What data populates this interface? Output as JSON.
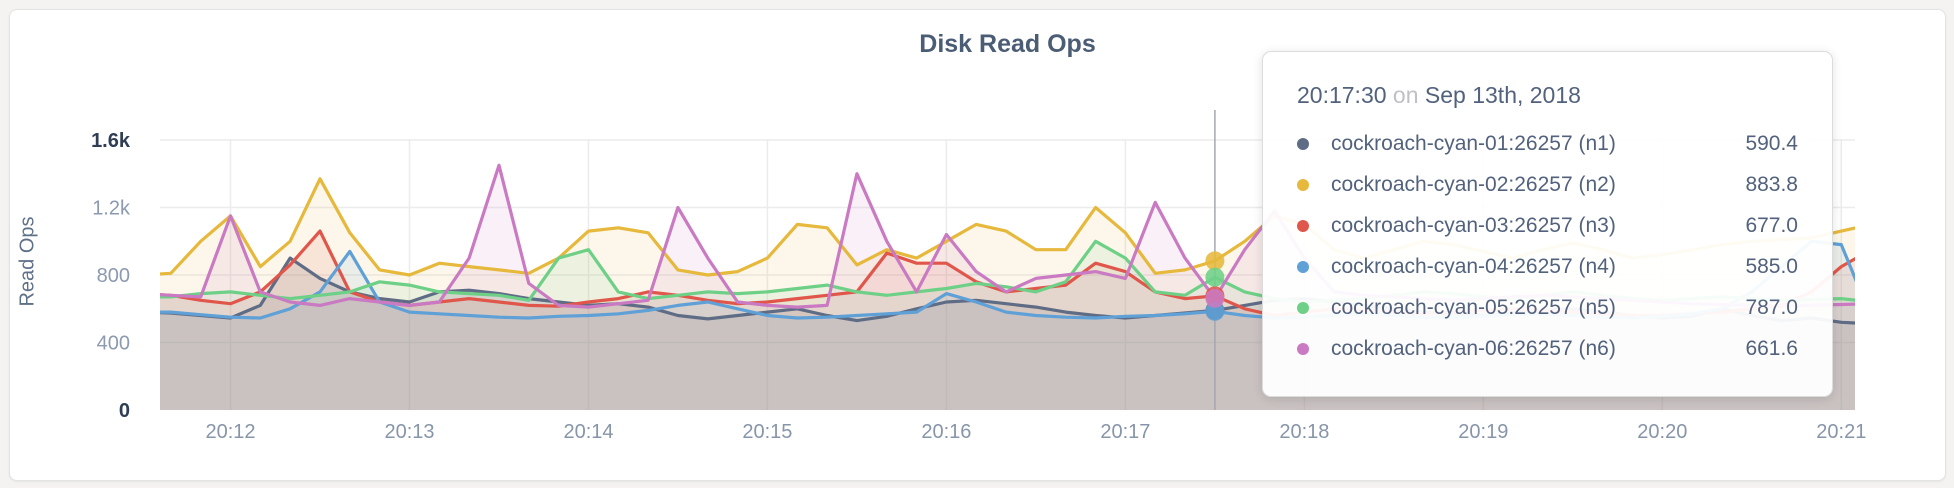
{
  "colors": {
    "page_bg": "#f4f3f1",
    "card_bg": "#ffffff",
    "card_border": "#e3e3e3",
    "grid": "#ececec",
    "crosshair": "#a3a8ae",
    "title_text": "#4b5c75",
    "tick_strong": "#2f3d55",
    "tick_light": "#8c9ab0",
    "tooltip_text": "#52627d"
  },
  "chart_data": {
    "type": "line",
    "title": "Disk Read Ops",
    "xlabel": "",
    "ylabel": "Read Ops",
    "ylim": [
      0,
      1600
    ],
    "grid": true,
    "legend_position": "tooltip",
    "area_fill": true,
    "x_ticks": [
      "20:12",
      "20:13",
      "20:14",
      "20:15",
      "20:16",
      "20:17",
      "20:18",
      "20:19",
      "20:20",
      "20:21"
    ],
    "y_ticks": [
      {
        "label": "0",
        "value": 0,
        "strong": true
      },
      {
        "label": "400",
        "value": 400,
        "strong": false
      },
      {
        "label": "800",
        "value": 800,
        "strong": false
      },
      {
        "label": "1.2k",
        "value": 1200,
        "strong": false
      },
      {
        "label": "1.6k",
        "value": 1600,
        "strong": true
      }
    ],
    "x": [
      "20:11:30",
      "20:11:40",
      "20:11:50",
      "20:12:00",
      "20:12:10",
      "20:12:20",
      "20:12:30",
      "20:12:40",
      "20:12:50",
      "20:13:00",
      "20:13:10",
      "20:13:20",
      "20:13:30",
      "20:13:40",
      "20:13:50",
      "20:14:00",
      "20:14:10",
      "20:14:20",
      "20:14:30",
      "20:14:40",
      "20:14:50",
      "20:15:00",
      "20:15:10",
      "20:15:20",
      "20:15:30",
      "20:15:40",
      "20:15:50",
      "20:16:00",
      "20:16:10",
      "20:16:20",
      "20:16:30",
      "20:16:40",
      "20:16:50",
      "20:17:00",
      "20:17:10",
      "20:17:20",
      "20:17:30",
      "20:17:40",
      "20:17:50",
      "20:18:00",
      "20:18:10",
      "20:18:20",
      "20:18:30",
      "20:18:40",
      "20:18:50",
      "20:19:00",
      "20:19:10",
      "20:19:20",
      "20:19:30",
      "20:19:40",
      "20:19:50",
      "20:20:00",
      "20:20:10",
      "20:20:20",
      "20:20:30",
      "20:20:40",
      "20:20:50",
      "20:21:00",
      "20:21:10"
    ],
    "series": [
      {
        "name": "cockroach-cyan-01:26257 (n1)",
        "color": "#5F6C85",
        "values": [
          580,
          575,
          560,
          545,
          620,
          900,
          780,
          700,
          660,
          640,
          700,
          710,
          690,
          660,
          640,
          620,
          630,
          610,
          560,
          540,
          560,
          580,
          600,
          560,
          530,
          555,
          600,
          640,
          650,
          630,
          610,
          580,
          560,
          545,
          560,
          575,
          590.4,
          620,
          650,
          660,
          640,
          620,
          600,
          580,
          570,
          560,
          575,
          590,
          600,
          580,
          560,
          545,
          555,
          600,
          560,
          530,
          545,
          520,
          510
        ]
      },
      {
        "name": "cockroach-cyan-02:26257 (n2)",
        "color": "#E6B83C",
        "values": [
          800,
          810,
          1000,
          1150,
          850,
          1000,
          1370,
          1050,
          830,
          800,
          870,
          850,
          830,
          810,
          900,
          1060,
          1080,
          1050,
          830,
          800,
          820,
          900,
          1100,
          1080,
          860,
          950,
          900,
          1000,
          1100,
          1060,
          950,
          950,
          1200,
          1050,
          810,
          830,
          883.8,
          1000,
          1150,
          1100,
          950,
          900,
          950,
          1000,
          980,
          940,
          900,
          950,
          990,
          950,
          900,
          920,
          950,
          980,
          1000,
          1010,
          1020,
          1060,
          1100
        ]
      },
      {
        "name": "cockroach-cyan-03:26257 (n3)",
        "color": "#E0564B",
        "values": [
          690,
          680,
          650,
          630,
          700,
          860,
          1060,
          700,
          640,
          620,
          640,
          660,
          640,
          620,
          615,
          640,
          660,
          700,
          680,
          650,
          630,
          640,
          660,
          680,
          700,
          930,
          870,
          870,
          760,
          700,
          720,
          740,
          870,
          820,
          700,
          660,
          677,
          600,
          560,
          580,
          600,
          590,
          580,
          570,
          580,
          590,
          600,
          590,
          580,
          570,
          560,
          560,
          570,
          580,
          600,
          620,
          700,
          850,
          950
        ]
      },
      {
        "name": "cockroach-cyan-04:26257 (n4)",
        "color": "#5FA0D7",
        "values": [
          580,
          580,
          565,
          550,
          545,
          600,
          700,
          940,
          640,
          580,
          570,
          560,
          550,
          545,
          555,
          560,
          570,
          590,
          620,
          640,
          600,
          560,
          545,
          550,
          560,
          570,
          580,
          690,
          640,
          580,
          560,
          550,
          545,
          555,
          560,
          570,
          585,
          560,
          545,
          550,
          560,
          570,
          560,
          550,
          545,
          555,
          565,
          570,
          560,
          550,
          545,
          555,
          570,
          600,
          700,
          850,
          1000,
          980,
          550
        ]
      },
      {
        "name": "cockroach-cyan-05:26257 (n5)",
        "color": "#6ED087",
        "values": [
          670,
          670,
          690,
          700,
          680,
          660,
          680,
          700,
          760,
          740,
          700,
          690,
          680,
          650,
          900,
          950,
          700,
          660,
          680,
          700,
          690,
          700,
          720,
          740,
          700,
          680,
          700,
          720,
          750,
          730,
          700,
          760,
          1000,
          900,
          700,
          680,
          787,
          700,
          660,
          640,
          650,
          660,
          680,
          700,
          690,
          670,
          660,
          680,
          700,
          680,
          660,
          650,
          660,
          670,
          660,
          650,
          655,
          660,
          640
        ]
      },
      {
        "name": "cockroach-cyan-06:26257 (n6)",
        "color": "#CA7AC2",
        "values": [
          690,
          680,
          670,
          1150,
          700,
          640,
          620,
          660,
          640,
          620,
          640,
          900,
          1450,
          750,
          620,
          610,
          630,
          650,
          1200,
          900,
          640,
          620,
          610,
          620,
          1400,
          1000,
          700,
          1040,
          820,
          700,
          780,
          800,
          820,
          780,
          1230,
          900,
          661.6,
          950,
          1180,
          900,
          700,
          680,
          670,
          660,
          650,
          660,
          670,
          680,
          670,
          660,
          650,
          640,
          630,
          625,
          620,
          615,
          620,
          625,
          630
        ]
      }
    ],
    "hover": {
      "index": 36,
      "time": "20:17:30",
      "on_word": "on",
      "date": "Sep 13th, 2018",
      "rows": [
        {
          "label": "cockroach-cyan-01:26257 (n1)",
          "value": "590.4"
        },
        {
          "label": "cockroach-cyan-02:26257 (n2)",
          "value": "883.8"
        },
        {
          "label": "cockroach-cyan-03:26257 (n3)",
          "value": "677.0"
        },
        {
          "label": "cockroach-cyan-04:26257 (n4)",
          "value": "585.0"
        },
        {
          "label": "cockroach-cyan-05:26257 (n5)",
          "value": "787.0"
        },
        {
          "label": "cockroach-cyan-06:26257 (n6)",
          "value": "661.6"
        }
      ]
    }
  }
}
